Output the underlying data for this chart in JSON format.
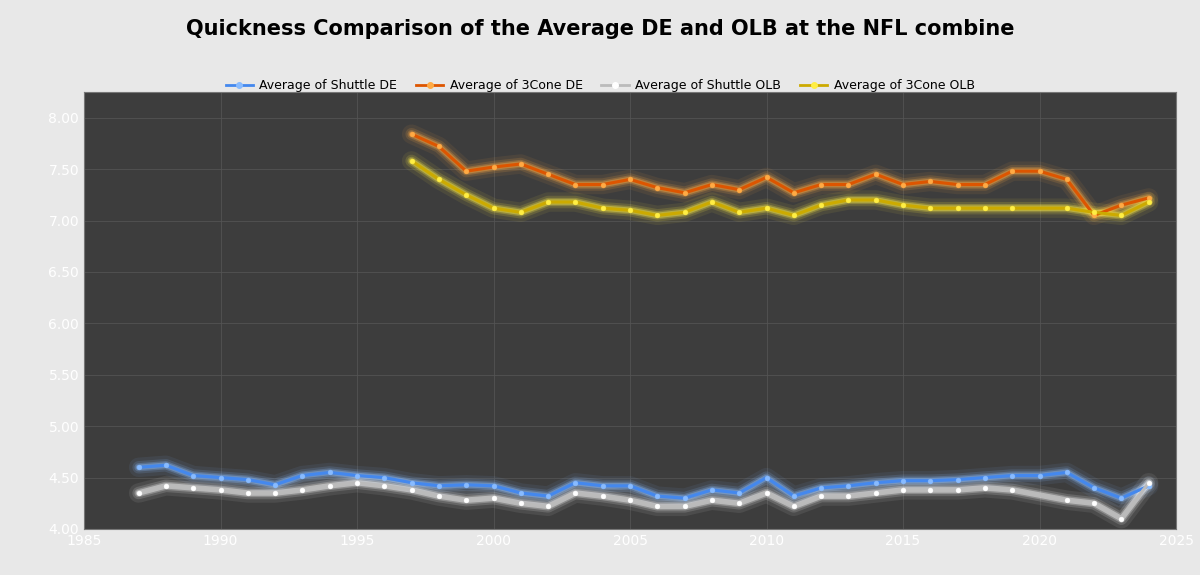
{
  "title": "Quickness Comparison of the Average DE and OLB at the NFL combine",
  "background_color": "#3d3d3d",
  "plot_bg_color": "#3d3d3d",
  "header_bg_color": "#e8e8e8",
  "grid_color": "#555555",
  "xlim": [
    1985,
    2025
  ],
  "ylim": [
    4.0,
    8.25
  ],
  "yticks": [
    4.0,
    4.5,
    5.0,
    5.5,
    6.0,
    6.5,
    7.0,
    7.5,
    8.0
  ],
  "xticks": [
    1985,
    1990,
    1995,
    2000,
    2005,
    2010,
    2015,
    2020,
    2025
  ],
  "shuttle_de_years": [
    1987,
    1988,
    1989,
    1990,
    1991,
    1992,
    1993,
    1994,
    1995,
    1996,
    1997,
    1998,
    1999,
    2000,
    2001,
    2002,
    2003,
    2004,
    2005,
    2006,
    2007,
    2008,
    2009,
    2010,
    2011,
    2012,
    2013,
    2014,
    2015,
    2016,
    2017,
    2018,
    2019,
    2020,
    2021,
    2022,
    2023,
    2024
  ],
  "shuttle_de_vals": [
    4.6,
    4.62,
    4.52,
    4.5,
    4.48,
    4.43,
    4.52,
    4.55,
    4.52,
    4.5,
    4.45,
    4.42,
    4.43,
    4.42,
    4.35,
    4.32,
    4.45,
    4.42,
    4.42,
    4.32,
    4.3,
    4.38,
    4.35,
    4.5,
    4.32,
    4.4,
    4.42,
    4.45,
    4.47,
    4.47,
    4.48,
    4.5,
    4.52,
    4.52,
    4.55,
    4.4,
    4.3,
    4.42
  ],
  "cone_de_years": [
    1997,
    1998,
    1999,
    2000,
    2001,
    2002,
    2003,
    2004,
    2005,
    2006,
    2007,
    2008,
    2009,
    2010,
    2011,
    2012,
    2013,
    2014,
    2015,
    2016,
    2017,
    2018,
    2019,
    2020,
    2021,
    2022,
    2023,
    2024
  ],
  "cone_de_vals": [
    7.84,
    7.72,
    7.48,
    7.52,
    7.55,
    7.45,
    7.35,
    7.35,
    7.4,
    7.32,
    7.27,
    7.35,
    7.3,
    7.42,
    7.27,
    7.35,
    7.35,
    7.45,
    7.35,
    7.38,
    7.35,
    7.35,
    7.48,
    7.48,
    7.4,
    7.05,
    7.15,
    7.22
  ],
  "shuttle_olb_years": [
    1987,
    1988,
    1989,
    1990,
    1991,
    1992,
    1993,
    1994,
    1995,
    1996,
    1997,
    1998,
    1999,
    2000,
    2001,
    2002,
    2003,
    2004,
    2005,
    2006,
    2007,
    2008,
    2009,
    2010,
    2011,
    2012,
    2013,
    2014,
    2015,
    2016,
    2017,
    2018,
    2019,
    2021,
    2022,
    2023,
    2024
  ],
  "shuttle_olb_vals": [
    4.35,
    4.42,
    4.4,
    4.38,
    4.35,
    4.35,
    4.38,
    4.42,
    4.45,
    4.42,
    4.38,
    4.32,
    4.28,
    4.3,
    4.25,
    4.22,
    4.35,
    4.32,
    4.28,
    4.22,
    4.22,
    4.28,
    4.25,
    4.35,
    4.22,
    4.32,
    4.32,
    4.35,
    4.38,
    4.38,
    4.38,
    4.4,
    4.38,
    4.28,
    4.25,
    4.1,
    4.45
  ],
  "cone_olb_years": [
    1997,
    1998,
    1999,
    2000,
    2001,
    2002,
    2003,
    2004,
    2005,
    2006,
    2007,
    2008,
    2009,
    2010,
    2011,
    2012,
    2013,
    2014,
    2015,
    2016,
    2017,
    2018,
    2019,
    2021,
    2022,
    2023,
    2024
  ],
  "cone_olb_vals": [
    7.58,
    7.4,
    7.25,
    7.12,
    7.08,
    7.18,
    7.18,
    7.12,
    7.1,
    7.05,
    7.08,
    7.18,
    7.08,
    7.12,
    7.05,
    7.15,
    7.2,
    7.2,
    7.15,
    7.12,
    7.12,
    7.12,
    7.12,
    7.12,
    7.08,
    7.05,
    7.18
  ],
  "legend_labels": [
    "Average of Shuttle DE",
    "Average of 3Cone DE",
    "Average of Shuttle OLB",
    "Average of 3Cone OLB"
  ],
  "line_colors": {
    "shuttle_de": "#4488ee",
    "cone_de": "#dd5500",
    "shuttle_olb": "#bbbbbb",
    "cone_olb": "#ccaa00"
  },
  "glow_colors": {
    "shuttle_de": "#88bbff",
    "cone_de": "#ffaa44",
    "shuttle_olb": "#ffffff",
    "cone_olb": "#ffee44"
  }
}
